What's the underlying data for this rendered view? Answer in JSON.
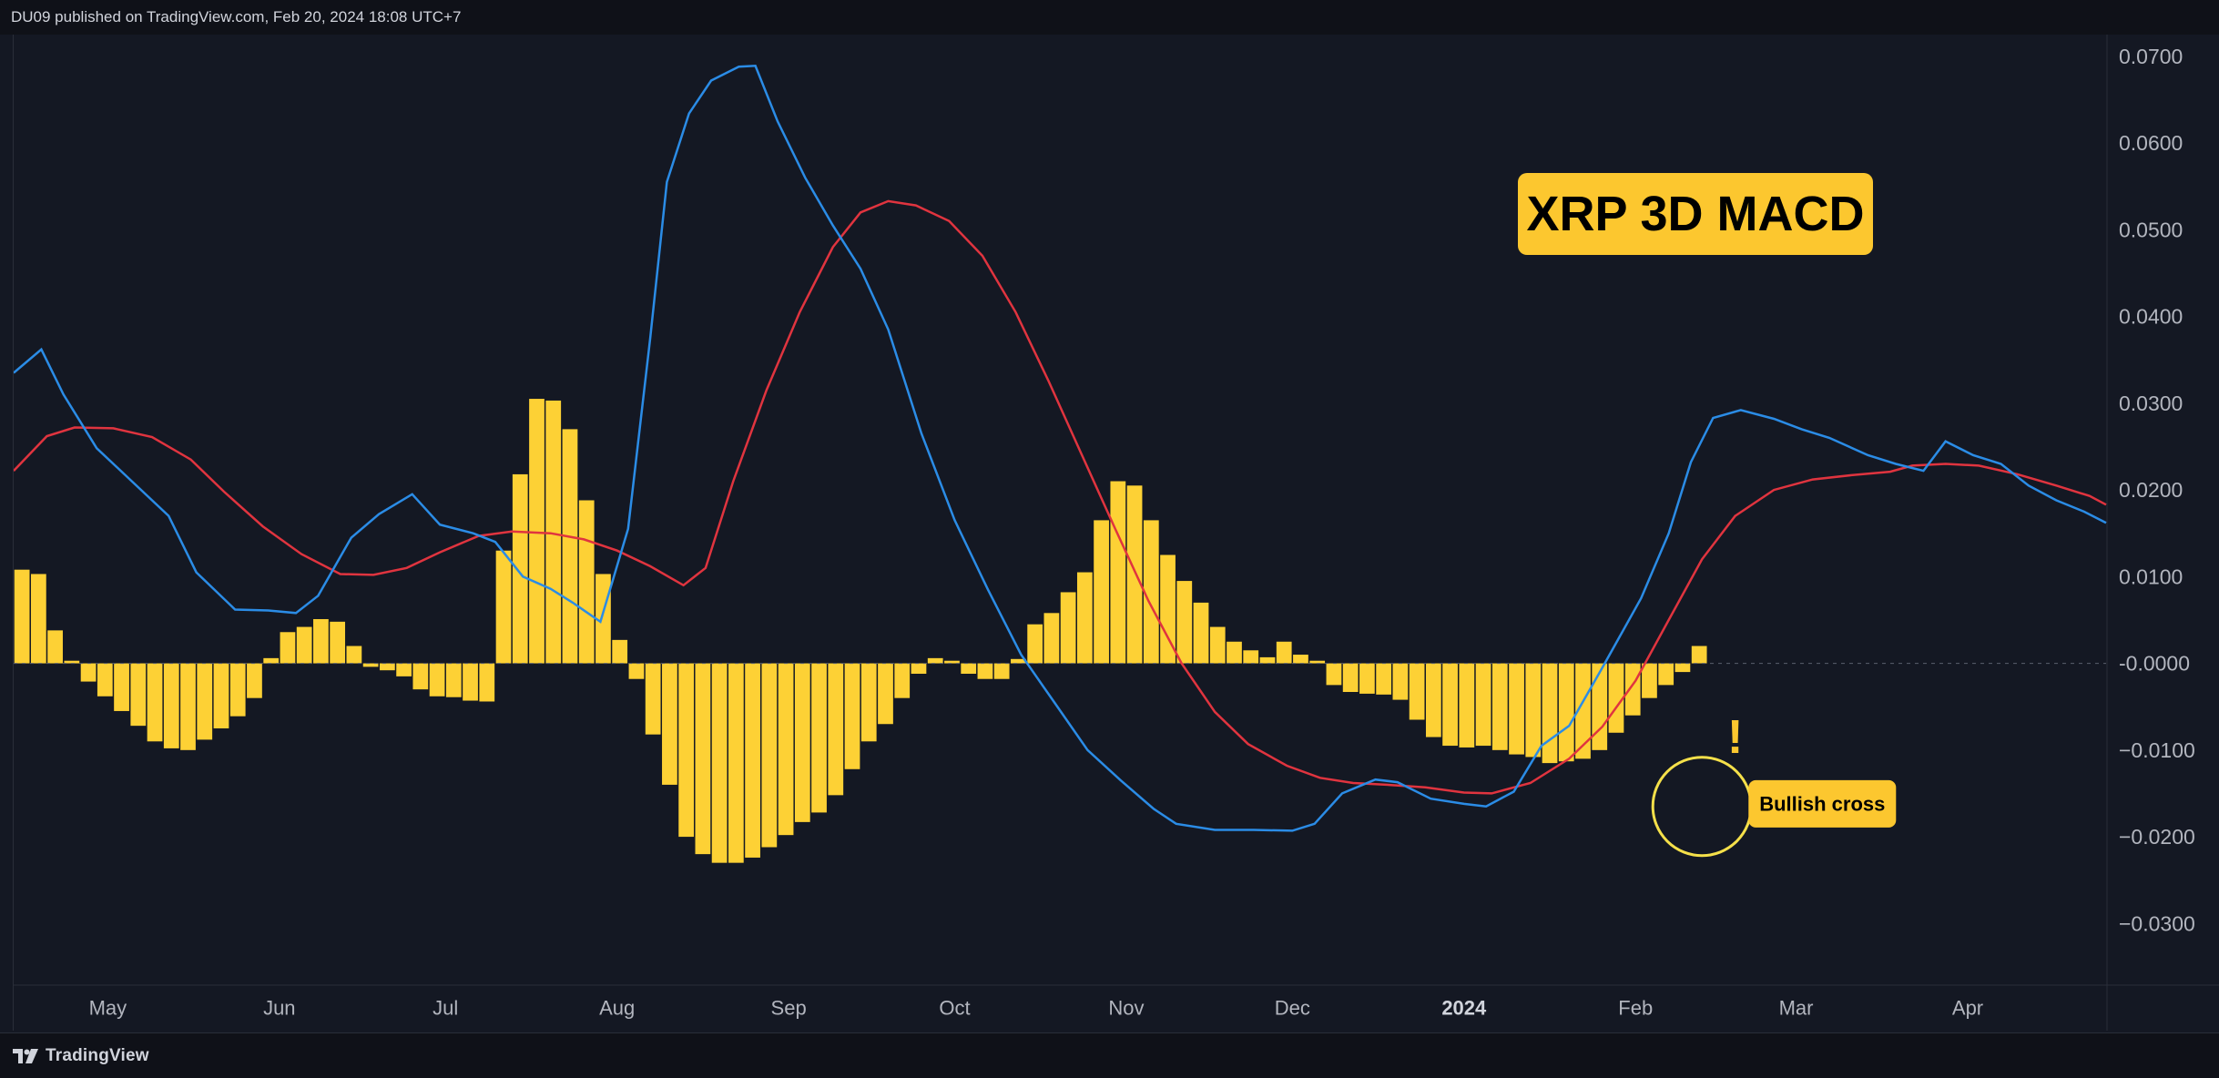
{
  "header": {
    "publish_text": "DU09 published on TradingView.com, Feb 20, 2024 18:08 UTC+7"
  },
  "footer": {
    "brand": "TradingView"
  },
  "colors": {
    "background": "#141823",
    "histogram": "#fdd135",
    "macd_line": "#2b8ce6",
    "signal_line": "#e0343f",
    "annotation_bg": "#fcc72f",
    "annotation_text": "#000000",
    "circle": "#f5e04a"
  },
  "icons": [
    "tradingview-logo-icon"
  ],
  "chart_data": {
    "type": "bar",
    "title": "XRP 3D MACD",
    "annotations": [
      {
        "text": "Bullish cross",
        "x": "2024-02-14",
        "y": -0.0162
      },
      {
        "text": "!",
        "x": "2024-02-19",
        "y": -0.0093
      }
    ],
    "highlight_circle": {
      "x": "2024-02-13",
      "y": -0.0165
    },
    "xlim": [
      "2023-04-14",
      "2024-04-26"
    ],
    "ylim": [
      -0.037,
      0.0725
    ],
    "y_ticks": [
      "0.0700",
      "0.0600",
      "0.0500",
      "0.0400",
      "0.0300",
      "0.0200",
      "0.0100",
      "-0.0000",
      "−0.0100",
      "−0.0200",
      "−0.0300"
    ],
    "y_tick_values": [
      0.07,
      0.06,
      0.05,
      0.04,
      0.03,
      0.02,
      0.01,
      0,
      -0.01,
      -0.02,
      -0.03
    ],
    "x_ticks": [
      {
        "label": "May",
        "date": "2023-05-01",
        "bold": false
      },
      {
        "label": "Jun",
        "date": "2023-06-01",
        "bold": false
      },
      {
        "label": "Jul",
        "date": "2023-07-01",
        "bold": false
      },
      {
        "label": "Aug",
        "date": "2023-08-01",
        "bold": false
      },
      {
        "label": "Sep",
        "date": "2023-09-01",
        "bold": false
      },
      {
        "label": "Oct",
        "date": "2023-10-01",
        "bold": false
      },
      {
        "label": "Nov",
        "date": "2023-11-01",
        "bold": false
      },
      {
        "label": "Dec",
        "date": "2023-12-01",
        "bold": false
      },
      {
        "label": "2024",
        "date": "2024-01-01",
        "bold": true
      },
      {
        "label": "Feb",
        "date": "2024-02-01",
        "bold": false
      },
      {
        "label": "Mar",
        "date": "2024-03-01",
        "bold": false
      },
      {
        "label": "Apr",
        "date": "2024-04-01",
        "bold": false
      }
    ],
    "series": [
      {
        "type": "bar",
        "start": "2023-04-14",
        "step_days": 3,
        "values": [
          0.0108,
          0.0103,
          0.0038,
          0.0003,
          -0.0021,
          -0.0038,
          -0.0055,
          -0.0072,
          -0.009,
          -0.0098,
          -0.01,
          -0.0088,
          -0.0075,
          -0.0061,
          -0.004,
          0.0006,
          0.0036,
          0.0042,
          0.0051,
          0.0048,
          0.002,
          -0.0004,
          -0.0008,
          -0.0015,
          -0.003,
          -0.0038,
          -0.0039,
          -0.0043,
          -0.0044,
          0.013,
          0.0218,
          0.0305,
          0.0303,
          0.027,
          0.0188,
          0.0103,
          0.0027,
          -0.0018,
          -0.0082,
          -0.014,
          -0.02,
          -0.022,
          -0.023,
          -0.023,
          -0.0224,
          -0.0212,
          -0.0198,
          -0.0183,
          -0.0172,
          -0.0152,
          -0.0122,
          -0.009,
          -0.007,
          -0.004,
          -0.0012,
          0.0006,
          0.0003,
          -0.0012,
          -0.0018,
          -0.0018,
          0.0005,
          0.0045,
          0.0058,
          0.0082,
          0.0105,
          0.0165,
          0.021,
          0.0205,
          0.0165,
          0.0125,
          0.0095,
          0.007,
          0.0042,
          0.0025,
          0.0015,
          0.0007,
          0.0025,
          0.001,
          0.0003,
          -0.0025,
          -0.0033,
          -0.0035,
          -0.0036,
          -0.0042,
          -0.0065,
          -0.0085,
          -0.0095,
          -0.0097,
          -0.0095,
          -0.01,
          -0.0105,
          -0.0108,
          -0.0115,
          -0.0113,
          -0.011,
          -0.01,
          -0.008,
          -0.006,
          -0.004,
          -0.0025,
          -0.001,
          0.002
        ]
      },
      {
        "type": "line",
        "role": "macd",
        "points": [
          [
            "2023-04-14",
            0.0335
          ],
          [
            "2023-04-19",
            0.0362
          ],
          [
            "2023-04-23",
            0.031
          ],
          [
            "2023-04-29",
            0.0248
          ],
          [
            "2023-05-05",
            0.0212
          ],
          [
            "2023-05-12",
            0.017
          ],
          [
            "2023-05-17",
            0.0105
          ],
          [
            "2023-05-24",
            0.0062
          ],
          [
            "2023-05-30",
            0.0061
          ],
          [
            "2023-06-04",
            0.0058
          ],
          [
            "2023-06-08",
            0.0078
          ],
          [
            "2023-06-14",
            0.0145
          ],
          [
            "2023-06-19",
            0.0172
          ],
          [
            "2023-06-25",
            0.0195
          ],
          [
            "2023-06-30",
            0.016
          ],
          [
            "2023-07-06",
            0.015
          ],
          [
            "2023-07-10",
            0.014
          ],
          [
            "2023-07-15",
            0.01
          ],
          [
            "2023-07-20",
            0.0086
          ],
          [
            "2023-07-24",
            0.007
          ],
          [
            "2023-07-29",
            0.0048
          ],
          [
            "2023-08-03",
            0.0155
          ],
          [
            "2023-08-07",
            0.0375
          ],
          [
            "2023-08-10",
            0.0555
          ],
          [
            "2023-08-14",
            0.0634
          ],
          [
            "2023-08-18",
            0.0672
          ],
          [
            "2023-08-23",
            0.0688
          ],
          [
            "2023-08-26",
            0.0689
          ],
          [
            "2023-08-30",
            0.0625
          ],
          [
            "2023-09-04",
            0.056
          ],
          [
            "2023-09-09",
            0.0505
          ],
          [
            "2023-09-14",
            0.0455
          ],
          [
            "2023-09-19",
            0.0385
          ],
          [
            "2023-09-25",
            0.0265
          ],
          [
            "2023-10-01",
            0.0165
          ],
          [
            "2023-10-07",
            0.0085
          ],
          [
            "2023-10-13",
            0.001
          ],
          [
            "2023-10-19",
            -0.0045
          ],
          [
            "2023-10-25",
            -0.01
          ],
          [
            "2023-10-31",
            -0.0135
          ],
          [
            "2023-11-06",
            -0.0168
          ],
          [
            "2023-11-10",
            -0.0185
          ],
          [
            "2023-11-17",
            -0.0192
          ],
          [
            "2023-11-24",
            -0.0192
          ],
          [
            "2023-12-01",
            -0.0193
          ],
          [
            "2023-12-05",
            -0.0185
          ],
          [
            "2023-12-10",
            -0.015
          ],
          [
            "2023-12-16",
            -0.0134
          ],
          [
            "2023-12-20",
            -0.0137
          ],
          [
            "2023-12-26",
            -0.0156
          ],
          [
            "2024-01-01",
            -0.0162
          ],
          [
            "2024-01-05",
            -0.0165
          ],
          [
            "2024-01-10",
            -0.0148
          ],
          [
            "2024-01-15",
            -0.0095
          ],
          [
            "2024-01-20",
            -0.0072
          ],
          [
            "2024-01-26",
            -0.0005
          ],
          [
            "2024-02-02",
            0.0075
          ],
          [
            "2024-02-07",
            0.015
          ],
          [
            "2024-02-11",
            0.0232
          ],
          [
            "2024-02-15",
            0.0283
          ],
          [
            "2024-02-20",
            0.0292
          ],
          [
            "2024-02-26",
            0.0282
          ],
          [
            "2024-03-02",
            0.027
          ],
          [
            "2024-03-07",
            0.026
          ],
          [
            "2024-03-14",
            0.024
          ],
          [
            "2024-03-19",
            0.023
          ],
          [
            "2024-03-24",
            0.0222
          ],
          [
            "2024-03-28",
            0.0256
          ],
          [
            "2024-04-02",
            0.024
          ],
          [
            "2024-04-07",
            0.023
          ],
          [
            "2024-04-12",
            0.0205
          ],
          [
            "2024-04-17",
            0.0188
          ],
          [
            "2024-04-22",
            0.0175
          ],
          [
            "2024-04-26",
            0.0162
          ]
        ]
      },
      {
        "type": "line",
        "role": "signal",
        "points": [
          [
            "2023-04-14",
            0.0222
          ],
          [
            "2023-04-20",
            0.0262
          ],
          [
            "2023-04-25",
            0.0272
          ],
          [
            "2023-05-02",
            0.0271
          ],
          [
            "2023-05-09",
            0.0261
          ],
          [
            "2023-05-16",
            0.0235
          ],
          [
            "2023-05-22",
            0.0198
          ],
          [
            "2023-05-29",
            0.0158
          ],
          [
            "2023-06-05",
            0.0126
          ],
          [
            "2023-06-12",
            0.0103
          ],
          [
            "2023-06-18",
            0.0102
          ],
          [
            "2023-06-24",
            0.011
          ],
          [
            "2023-06-30",
            0.0128
          ],
          [
            "2023-07-07",
            0.0147
          ],
          [
            "2023-07-13",
            0.0152
          ],
          [
            "2023-07-20",
            0.015
          ],
          [
            "2023-07-26",
            0.0143
          ],
          [
            "2023-08-01",
            0.013
          ],
          [
            "2023-08-07",
            0.0112
          ],
          [
            "2023-08-13",
            0.009
          ],
          [
            "2023-08-17",
            0.011
          ],
          [
            "2023-08-22",
            0.021
          ],
          [
            "2023-08-28",
            0.0315
          ],
          [
            "2023-09-03",
            0.0405
          ],
          [
            "2023-09-09",
            0.048
          ],
          [
            "2023-09-14",
            0.052
          ],
          [
            "2023-09-19",
            0.0533
          ],
          [
            "2023-09-24",
            0.0528
          ],
          [
            "2023-09-30",
            0.051
          ],
          [
            "2023-10-06",
            0.047
          ],
          [
            "2023-10-12",
            0.0405
          ],
          [
            "2023-10-18",
            0.0325
          ],
          [
            "2023-10-24",
            0.024
          ],
          [
            "2023-10-30",
            0.0155
          ],
          [
            "2023-11-05",
            0.0072
          ],
          [
            "2023-11-11",
            0.0
          ],
          [
            "2023-11-17",
            -0.0056
          ],
          [
            "2023-11-23",
            -0.0093
          ],
          [
            "2023-11-30",
            -0.0118
          ],
          [
            "2023-12-06",
            -0.0132
          ],
          [
            "2023-12-12",
            -0.0138
          ],
          [
            "2023-12-18",
            -0.014
          ],
          [
            "2023-12-25",
            -0.0143
          ],
          [
            "2024-01-01",
            -0.0149
          ],
          [
            "2024-01-06",
            -0.015
          ],
          [
            "2024-01-13",
            -0.0138
          ],
          [
            "2024-01-20",
            -0.011
          ],
          [
            "2024-01-26",
            -0.0073
          ],
          [
            "2024-02-01",
            -0.002
          ],
          [
            "2024-02-07",
            0.005
          ],
          [
            "2024-02-13",
            0.012
          ],
          [
            "2024-02-19",
            0.017
          ],
          [
            "2024-02-26",
            0.02
          ],
          [
            "2024-03-04",
            0.0212
          ],
          [
            "2024-03-11",
            0.0217
          ],
          [
            "2024-03-18",
            0.0221
          ],
          [
            "2024-03-22",
            0.0228
          ],
          [
            "2024-03-28",
            0.023
          ],
          [
            "2024-04-03",
            0.0228
          ],
          [
            "2024-04-10",
            0.0218
          ],
          [
            "2024-04-17",
            0.0205
          ],
          [
            "2024-04-23",
            0.0193
          ],
          [
            "2024-04-26",
            0.0183
          ]
        ]
      }
    ]
  }
}
